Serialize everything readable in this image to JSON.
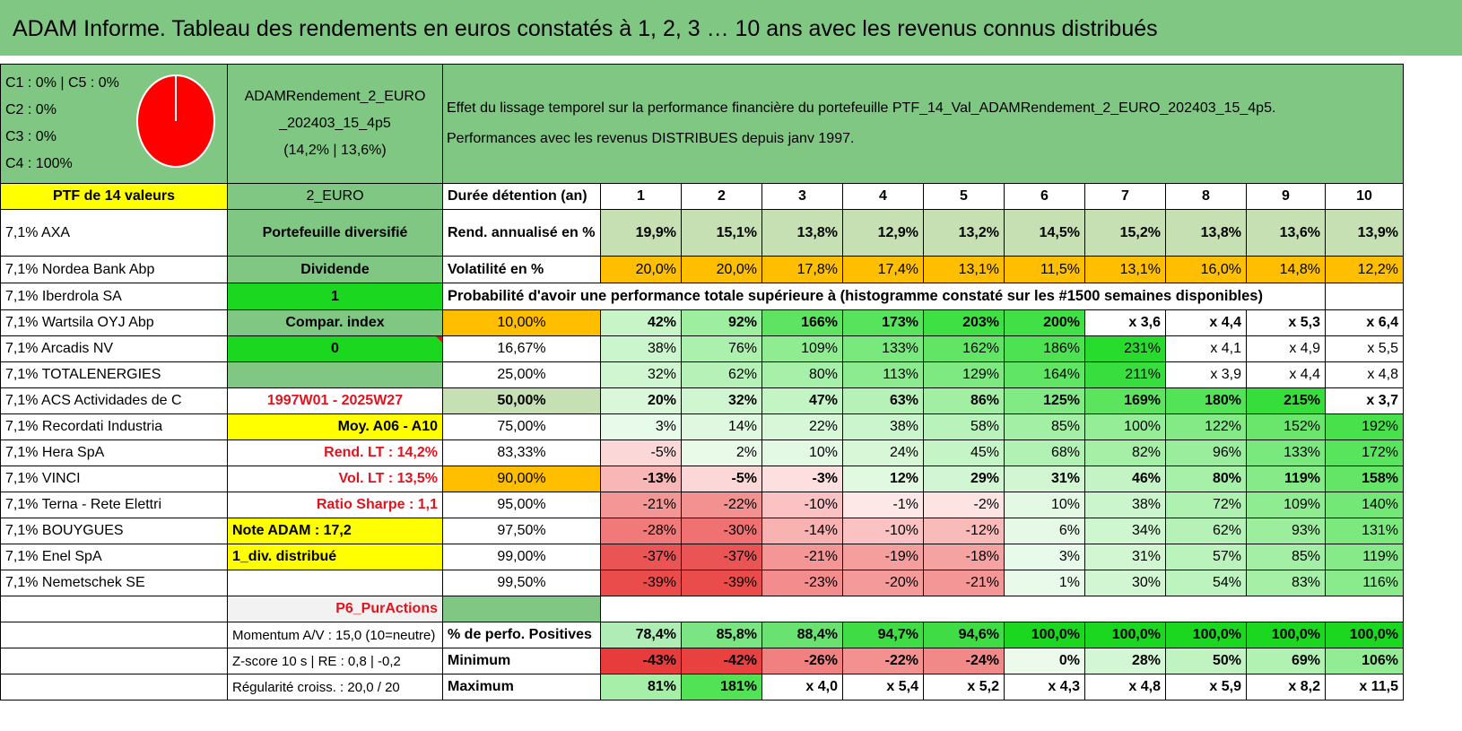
{
  "title": "ADAM Informe. Tableau des rendements en euros constatés à 1, 2, 3 … 10 ans avec les revenus connus distribués",
  "header": {
    "classes": [
      "C1 : 0% | C5 : 0%",
      "C2 : 0%",
      "C3 : 0%",
      "C4 : 100%"
    ],
    "pie_color": "#ff0000",
    "portfolio_name": "ADAMRendement_2_EURO_202403_15_4p5",
    "portfolio_name_l1": "ADAMRendement_2_EURO",
    "portfolio_name_l2": "_202403_15_4p5",
    "portfolio_stats": "(14,2% | 13,6%)",
    "description_l1": "Effet du lissage temporel sur la performance financière du portefeuille PTF_14_Val_ADAMRendement_2_EURO_202403_15_4p5.",
    "description_l2": "Performances avec les revenus DISTRIBUES depuis janv 1997."
  },
  "colors": {
    "header_green": "#80c784",
    "light_green": "#c6e0b4",
    "bright_green": "#1bd720",
    "yellow": "#ffff00",
    "orange": "#ffbf00",
    "red_text": "#e0141e"
  },
  "rows": [
    {
      "a": "PTF de 14 valeurs",
      "b": "2_EURO",
      "c": "Durée détention (an)",
      "v": [
        "1",
        "2",
        "3",
        "4",
        "5",
        "6",
        "7",
        "8",
        "9",
        "10"
      ]
    },
    {
      "a": "7,1% AXA",
      "b": "Portefeuille diversifié",
      "c": "Rend. annualisé en %",
      "v": [
        "19,9%",
        "15,1%",
        "13,8%",
        "12,9%",
        "13,2%",
        "14,5%",
        "15,2%",
        "13,8%",
        "13,6%",
        "13,9%"
      ]
    },
    {
      "a": "7,1% Nordea Bank Abp",
      "b": "Dividende",
      "c": "Volatilité en %",
      "v": [
        "20,0%",
        "20,0%",
        "17,8%",
        "17,4%",
        "13,1%",
        "11,5%",
        "13,1%",
        "16,0%",
        "14,8%",
        "12,2%"
      ]
    },
    {
      "a": "7,1% Iberdrola SA",
      "b": "1",
      "c": "Probabilité d'avoir une performance totale supérieure à (histogramme constaté sur les #1500 semaines disponibles)"
    },
    {
      "a": "7,1% Wartsila OYJ Abp",
      "b": "Compar. index",
      "c": "10,00%",
      "v": [
        "42%",
        "92%",
        "166%",
        "173%",
        "203%",
        "200%",
        "x 3,6",
        "x 4,4",
        "x 5,3",
        "x 6,4"
      ]
    },
    {
      "a": "7,1% Arcadis NV",
      "b": "0",
      "c": "16,67%",
      "v": [
        "38%",
        "76%",
        "109%",
        "133%",
        "162%",
        "186%",
        "231%",
        "x 4,1",
        "x 4,9",
        "x 5,5"
      ]
    },
    {
      "a": "7,1% TOTALENERGIES",
      "b": "",
      "c": "25,00%",
      "v": [
        "32%",
        "62%",
        "80%",
        "113%",
        "129%",
        "164%",
        "211%",
        "x 3,9",
        "x 4,4",
        "x 4,8"
      ]
    },
    {
      "a": "7,1% ACS Actividades de C",
      "b": "1997W01 - 2025W27",
      "c": "50,00%",
      "v": [
        "20%",
        "32%",
        "47%",
        "63%",
        "86%",
        "125%",
        "169%",
        "180%",
        "215%",
        "x 3,7"
      ]
    },
    {
      "a": "7,1% Recordati Industria",
      "b": "Moy. A06 - A10",
      "c": "75,00%",
      "v": [
        "3%",
        "14%",
        "22%",
        "38%",
        "58%",
        "85%",
        "100%",
        "122%",
        "152%",
        "192%"
      ]
    },
    {
      "a": "7,1% Hera SpA",
      "b": "Rend. LT : 14,2%",
      "c": "83,33%",
      "v": [
        "-5%",
        "2%",
        "10%",
        "24%",
        "45%",
        "68%",
        "82%",
        "96%",
        "133%",
        "172%"
      ]
    },
    {
      "a": "7,1% VINCI",
      "b": "Vol. LT : 13,5%",
      "c": "90,00%",
      "v": [
        "-13%",
        "-5%",
        "-3%",
        "12%",
        "29%",
        "31%",
        "46%",
        "80%",
        "119%",
        "158%"
      ]
    },
    {
      "a": "7,1% Terna - Rete Elettri",
      "b": "Ratio Sharpe : 1,1",
      "c": "95,00%",
      "v": [
        "-21%",
        "-22%",
        "-10%",
        "-1%",
        "-2%",
        "10%",
        "38%",
        "72%",
        "109%",
        "140%"
      ]
    },
    {
      "a": "7,1% BOUYGUES",
      "b": "Note ADAM : 17,2",
      "c": "97,50%",
      "v": [
        "-28%",
        "-30%",
        "-14%",
        "-10%",
        "-12%",
        "6%",
        "34%",
        "62%",
        "93%",
        "131%"
      ]
    },
    {
      "a": "7,1% Enel SpA",
      "b": "1_div. distribué",
      "c": "99,00%",
      "v": [
        "-37%",
        "-37%",
        "-21%",
        "-19%",
        "-18%",
        "3%",
        "31%",
        "57%",
        "85%",
        "119%"
      ]
    },
    {
      "a": "7,1% Nemetschek SE",
      "b": "",
      "c": "99,50%",
      "v": [
        "-39%",
        "-39%",
        "-23%",
        "-20%",
        "-21%",
        "1%",
        "30%",
        "54%",
        "83%",
        "116%"
      ]
    },
    {
      "a": "",
      "b": "P6_PurActions",
      "c": ""
    },
    {
      "a": "",
      "b": "Momentum A/V : 15,0 (10=neutre)",
      "c": "% de perfo. Positives",
      "v": [
        "78,4%",
        "85,8%",
        "88,4%",
        "94,7%",
        "94,6%",
        "100,0%",
        "100,0%",
        "100,0%",
        "100,0%",
        "100,0%"
      ]
    },
    {
      "a": "",
      "b": "Z-score 10 s | RE : 0,8 | -0,2",
      "c": "Minimum",
      "v": [
        "-43%",
        "-42%",
        "-26%",
        "-22%",
        "-24%",
        "0%",
        "28%",
        "50%",
        "69%",
        "106%"
      ]
    },
    {
      "a": "",
      "b": "Régularité croiss. : 20,0 / 20",
      "c": "Maximum",
      "v": [
        "81%",
        "181%",
        "x 4,0",
        "x 5,4",
        "x 5,2",
        "x 4,3",
        "x 4,8",
        "x 5,9",
        "x 8,2",
        "x 11,5"
      ]
    }
  ]
}
